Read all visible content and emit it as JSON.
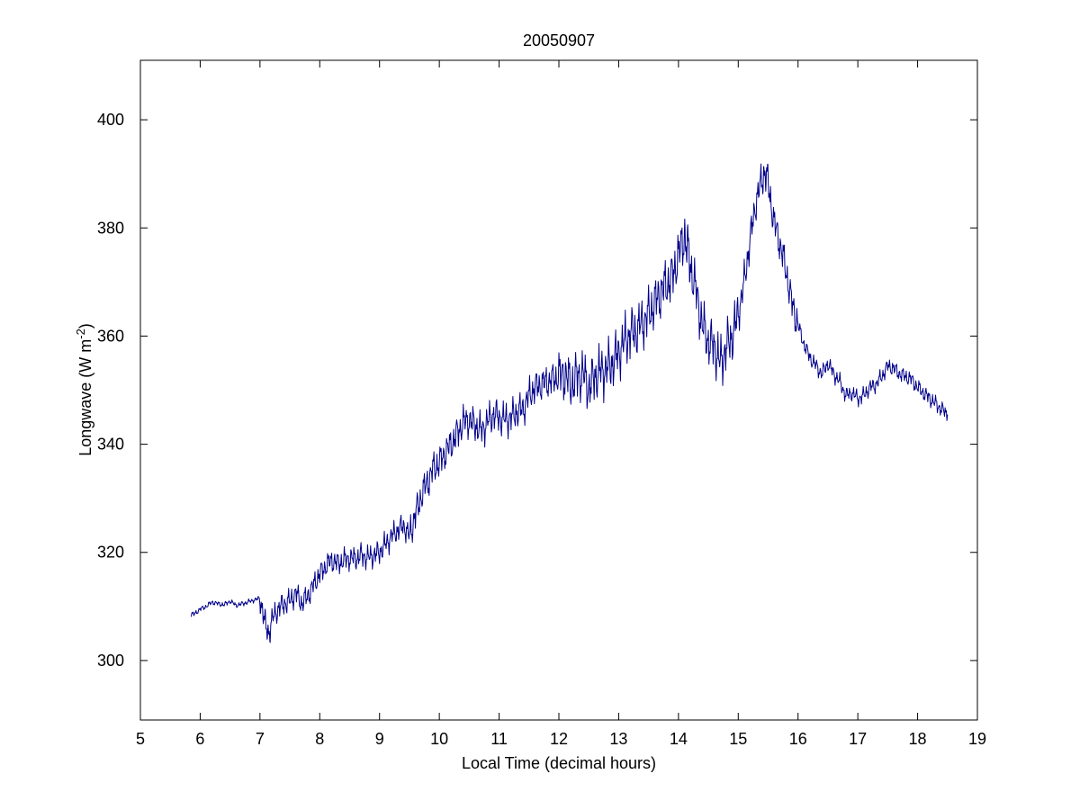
{
  "chart_data": {
    "type": "line",
    "title": "20050907",
    "xlabel": "Local Time (decimal hours)",
    "ylabel": {
      "prefix": "Longwave (W m",
      "superscript": "-2",
      "suffix": ")"
    },
    "xlim": [
      5,
      19
    ],
    "ylim": [
      289,
      411
    ],
    "xticks": [
      5,
      6,
      7,
      8,
      9,
      10,
      11,
      12,
      13,
      14,
      15,
      16,
      17,
      18,
      19
    ],
    "yticks": [
      300,
      320,
      340,
      360,
      380,
      400
    ],
    "grid": false,
    "line_color": "#00008b",
    "series": [
      {
        "x": [
          5.85,
          5.9,
          6.0,
          6.1,
          6.2,
          6.3,
          6.4,
          6.5,
          6.6,
          6.7,
          6.8,
          6.9,
          7.0,
          7.05,
          7.1,
          7.15,
          7.2,
          7.3,
          7.4,
          7.5,
          7.6,
          7.7,
          7.8,
          7.9,
          8.0,
          8.1,
          8.2,
          8.3,
          8.4,
          8.5,
          8.6,
          8.7,
          8.8,
          8.9,
          9.0,
          9.1,
          9.2,
          9.3,
          9.4,
          9.5,
          9.6,
          9.7,
          9.8,
          9.9,
          10.0,
          10.1,
          10.2,
          10.3,
          10.4,
          10.5,
          10.6,
          10.7,
          10.8,
          10.9,
          11.0,
          11.1,
          11.2,
          11.3,
          11.4,
          11.5,
          11.6,
          11.7,
          11.8,
          11.9,
          12.0,
          12.1,
          12.2,
          12.3,
          12.4,
          12.5,
          12.6,
          12.7,
          12.8,
          12.9,
          13.0,
          13.1,
          13.2,
          13.3,
          13.4,
          13.5,
          13.6,
          13.7,
          13.8,
          13.9,
          14.0,
          14.1,
          14.15,
          14.2,
          14.3,
          14.4,
          14.5,
          14.6,
          14.7,
          14.8,
          14.9,
          15.0,
          15.1,
          15.2,
          15.3,
          15.4,
          15.45,
          15.5,
          15.6,
          15.7,
          15.8,
          15.9,
          16.0,
          16.1,
          16.2,
          16.3,
          16.4,
          16.5,
          16.6,
          16.7,
          16.8,
          16.9,
          17.0,
          17.1,
          17.2,
          17.3,
          17.4,
          17.5,
          17.6,
          17.7,
          17.8,
          17.9,
          18.0,
          18.1,
          18.2,
          18.3,
          18.4,
          18.5
        ],
        "y": [
          308.5,
          308.6,
          309.5,
          310.0,
          310.8,
          310.5,
          310.3,
          311.0,
          310.2,
          310.5,
          310.8,
          311.2,
          311.5,
          309.0,
          306.0,
          305.0,
          307.5,
          309.5,
          310.5,
          311.0,
          312.5,
          310.5,
          312.0,
          314.0,
          316.0,
          317.5,
          318.5,
          318.0,
          318.5,
          319.0,
          318.8,
          319.5,
          319.0,
          319.5,
          320.0,
          321.5,
          323.0,
          324.0,
          325.0,
          323.0,
          327.0,
          330.5,
          333.0,
          335.5,
          336.5,
          338.5,
          340.0,
          342.0,
          344.0,
          344.5,
          343.5,
          342.5,
          344.0,
          345.5,
          345.0,
          344.5,
          345.0,
          346.0,
          346.5,
          349.0,
          350.5,
          351.0,
          351.5,
          352.0,
          352.5,
          353.0,
          351.0,
          352.5,
          353.0,
          350.5,
          352.5,
          353.5,
          354.0,
          355.0,
          357.0,
          359.0,
          360.5,
          361.0,
          362.5,
          364.0,
          366.0,
          368.0,
          369.5,
          371.0,
          375.0,
          378.5,
          376.0,
          373.0,
          368.0,
          362.0,
          359.0,
          358.0,
          355.0,
          358.0,
          360.0,
          364.0,
          370.0,
          378.0,
          385.0,
          389.0,
          390.5,
          388.0,
          381.0,
          377.0,
          372.0,
          366.0,
          362.0,
          358.5,
          356.0,
          354.5,
          353.0,
          355.0,
          353.0,
          351.5,
          349.0,
          349.5,
          348.5,
          349.0,
          350.5,
          351.0,
          352.5,
          354.5,
          354.0,
          353.0,
          352.5,
          352.0,
          350.5,
          349.5,
          348.5,
          347.5,
          346.5,
          345.5
        ]
      }
    ]
  }
}
